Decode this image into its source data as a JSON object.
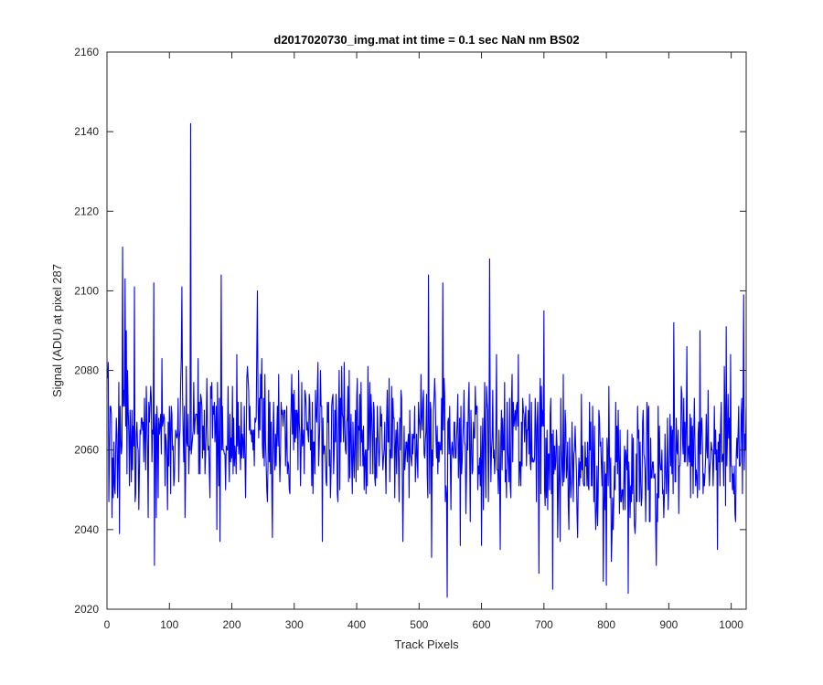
{
  "chart_data": {
    "type": "line",
    "title": "d2017020730_img.mat int time = 0.1 sec  NaN nm BS02",
    "xlabel": "Track Pixels",
    "ylabel": "Signal (ADU) at pixel 287",
    "xlim": [
      0,
      1024
    ],
    "ylim": [
      2020,
      2160
    ],
    "xticks": [
      0,
      100,
      200,
      300,
      400,
      500,
      600,
      700,
      800,
      900,
      1000
    ],
    "yticks": [
      2020,
      2040,
      2060,
      2080,
      2100,
      2120,
      2140,
      2160
    ],
    "grid": false,
    "series": [
      {
        "color": "#0000ff",
        "n_points": 1024,
        "x_start": 1,
        "segments": [
          {
            "x": [
              0,
              180
            ],
            "baseline": 2066,
            "noise_low": 2041,
            "noise_high": 2092
          },
          {
            "x": [
              180,
              540
            ],
            "baseline": 2063,
            "noise_low": 2043,
            "noise_high": 2088
          },
          {
            "x": [
              540,
              700
            ],
            "baseline": 2060,
            "noise_low": 2038,
            "noise_high": 2086
          },
          {
            "x": [
              700,
              900
            ],
            "baseline": 2056,
            "noise_low": 2032,
            "noise_high": 2082
          },
          {
            "x": [
              900,
              1024
            ],
            "baseline": 2060,
            "noise_low": 2038,
            "noise_high": 2090
          }
        ],
        "extremes": [
          {
            "x": 2,
            "y": 2082
          },
          {
            "x": 8,
            "y": 2043
          },
          {
            "x": 20,
            "y": 2039
          },
          {
            "x": 25,
            "y": 2111
          },
          {
            "x": 29,
            "y": 2103
          },
          {
            "x": 44,
            "y": 2101
          },
          {
            "x": 75,
            "y": 2102
          },
          {
            "x": 76,
            "y": 2031
          },
          {
            "x": 120,
            "y": 2101
          },
          {
            "x": 125,
            "y": 2043
          },
          {
            "x": 134,
            "y": 2142
          },
          {
            "x": 181,
            "y": 2037
          },
          {
            "x": 183,
            "y": 2104
          },
          {
            "x": 241,
            "y": 2100
          },
          {
            "x": 265,
            "y": 2038
          },
          {
            "x": 345,
            "y": 2037
          },
          {
            "x": 474,
            "y": 2037
          },
          {
            "x": 515,
            "y": 2104
          },
          {
            "x": 520,
            "y": 2033
          },
          {
            "x": 538,
            "y": 2102
          },
          {
            "x": 545,
            "y": 2023
          },
          {
            "x": 566,
            "y": 2036
          },
          {
            "x": 600,
            "y": 2036
          },
          {
            "x": 613,
            "y": 2108
          },
          {
            "x": 630,
            "y": 2035
          },
          {
            "x": 692,
            "y": 2029
          },
          {
            "x": 700,
            "y": 2095
          },
          {
            "x": 714,
            "y": 2025
          },
          {
            "x": 795,
            "y": 2027
          },
          {
            "x": 800,
            "y": 2026
          },
          {
            "x": 835,
            "y": 2024
          },
          {
            "x": 880,
            "y": 2031
          },
          {
            "x": 908,
            "y": 2092
          },
          {
            "x": 950,
            "y": 2090
          },
          {
            "x": 978,
            "y": 2035
          },
          {
            "x": 992,
            "y": 2091
          },
          {
            "x": 1020,
            "y": 2099
          }
        ]
      }
    ]
  }
}
